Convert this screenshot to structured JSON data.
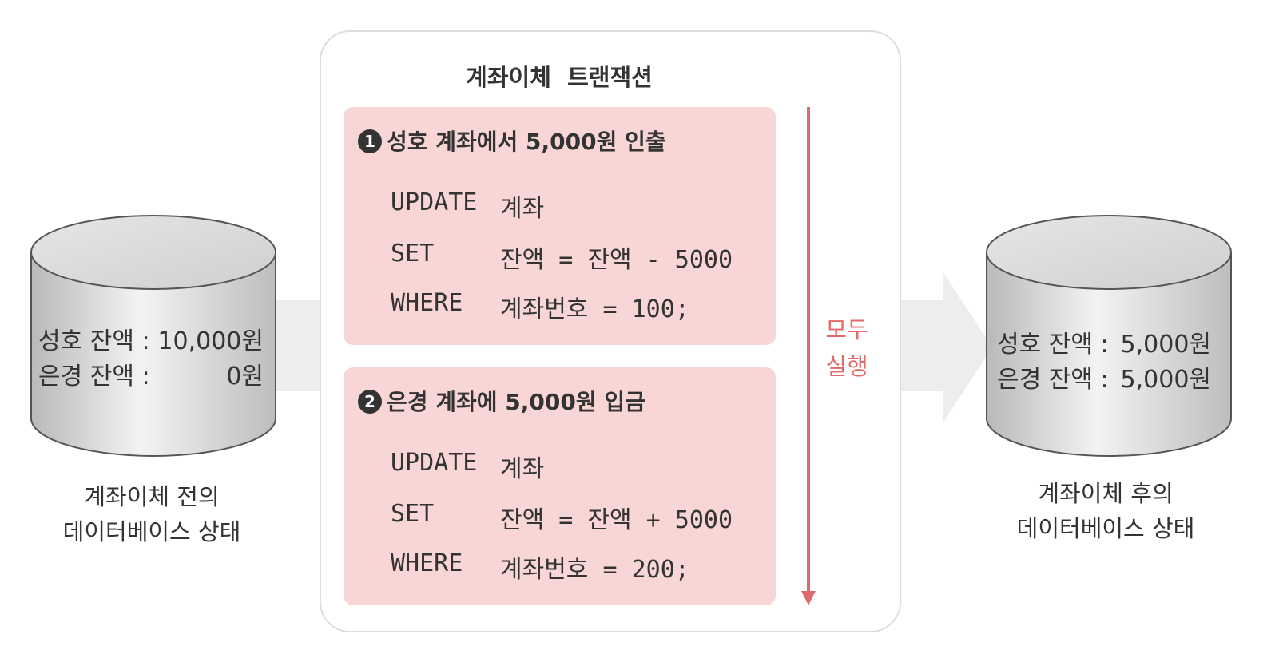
{
  "transaction": {
    "title": "계좌이체  트랜잭션",
    "run_label": [
      "모두",
      "실행"
    ],
    "steps": [
      {
        "number": "1",
        "title": "성호 계좌에서 5,000원 인출",
        "sql": [
          {
            "keyword": "UPDATE",
            "expr": "계좌"
          },
          {
            "keyword": "SET",
            "expr": "잔액 = 잔액 - 5000"
          },
          {
            "keyword": "WHERE",
            "expr": "계좌번호 = 100;"
          }
        ]
      },
      {
        "number": "2",
        "title": "은경 계좌에 5,000원 입금",
        "sql": [
          {
            "keyword": "UPDATE",
            "expr": "계좌"
          },
          {
            "keyword": "SET",
            "expr": "잔액 = 잔액 + 5000"
          },
          {
            "keyword": "WHERE",
            "expr": "계좌번호 = 200;"
          }
        ]
      }
    ]
  },
  "before_db": {
    "lines": [
      {
        "label": "성호 잔액 :",
        "value": "10,000원"
      },
      {
        "label": "은경 잔액 :",
        "value": "0원"
      }
    ],
    "caption": [
      "계좌이체 전의",
      "데이터베이스 상태"
    ]
  },
  "after_db": {
    "lines": [
      {
        "label": "성호 잔액 :",
        "value": "5,000원"
      },
      {
        "label": "은경 잔액 :",
        "value": "5,000원"
      }
    ],
    "caption": [
      "계좌이체 후의",
      "데이터베이스 상태"
    ]
  },
  "colors": {
    "step_fill": "#f8d6d6",
    "run_arrow": "#e06a6a",
    "flow_band": "#ededed"
  }
}
